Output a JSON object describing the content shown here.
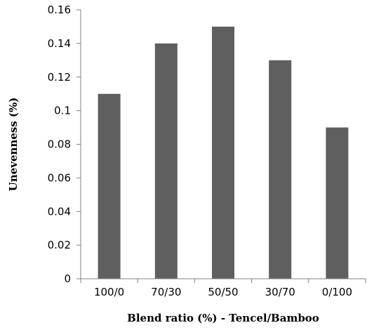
{
  "chart_data": {
    "type": "bar",
    "categories": [
      "100/0",
      "70/30",
      "50/50",
      "30/70",
      "0/100"
    ],
    "series": [
      {
        "values": [
          0.11,
          0.14,
          0.15,
          0.13,
          0.09
        ],
        "color": "#5f5f5f"
      }
    ],
    "xlabel": "Blend ratio (%) - Tencel/Bamboo",
    "ylabel": "Unevenness (%)",
    "ylim": [
      0,
      0.16
    ],
    "yticks": [
      "0",
      "0.02",
      "0.04",
      "0.06",
      "0.08",
      "0.1",
      "0.12",
      "0.14",
      "0.16"
    ],
    "grid": false,
    "legend": "none",
    "axis_color": "#808080"
  }
}
